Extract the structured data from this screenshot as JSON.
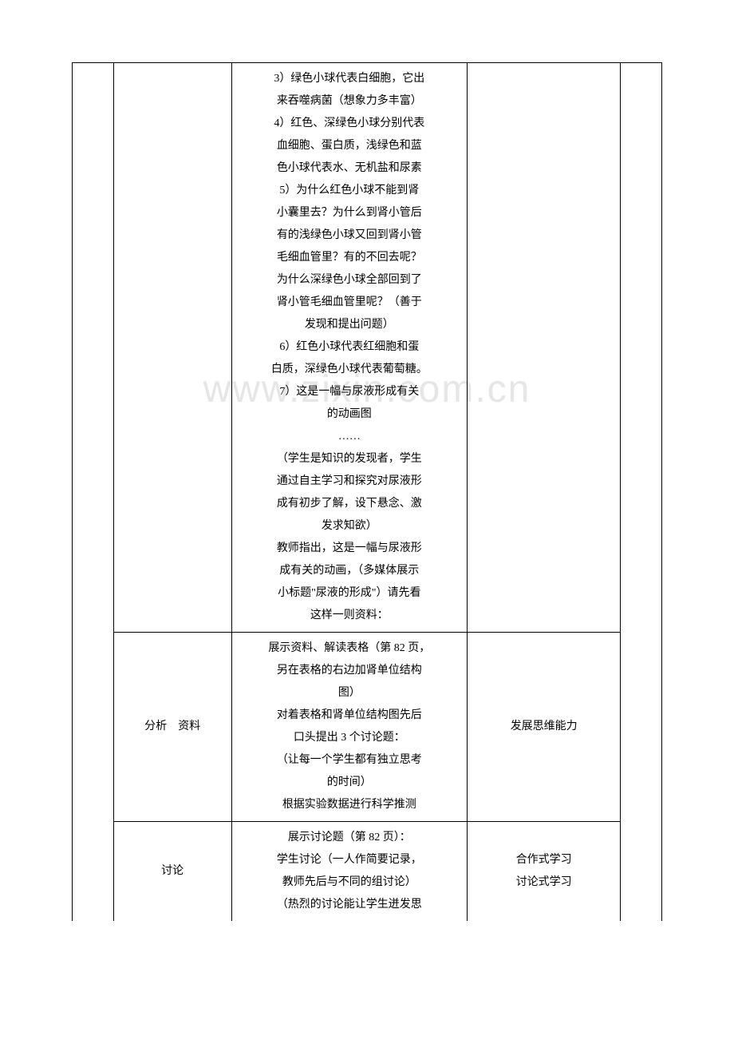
{
  "page": {
    "watermark": "www.zixin.com.cn",
    "rows": [
      {
        "sub": "",
        "main_lines": [
          "3）绿色小球代表白细胞，它出",
          "来吞噬病菌（想象力多丰富）",
          "4）红色、深绿色小球分别代表",
          "血细胞、蛋白质，浅绿色和蓝",
          "色小球代表水、无机盐和尿素",
          "5）为什么红色小球不能到肾",
          "小囊里去？为什么到肾小管后",
          "有的浅绿色小球又回到肾小管",
          "毛细血管里？有的不回去呢？",
          "为什么深绿色小球全部回到了",
          "肾小管毛细血管里呢？（善于",
          "发现和提出问题）",
          "6）红色小球代表红细胞和蛋",
          "白质，深绿色小球代表葡萄糖。",
          "7）这是一幅与尿液形成有关",
          "的动画图",
          "……",
          "（学生是知识的发现者，学生",
          "通过自主学习和探究对尿液形",
          "成有初步了解，设下悬念、激",
          "发求知欲）",
          "教师指出，这是一幅与尿液形",
          "成有关的动画，（多媒体展示",
          "小标题\"尿液的形成\"）请先看",
          "这样一则资料："
        ],
        "note": ""
      },
      {
        "sub": "分析　资料",
        "main_lines": [
          "展示资料、解读表格（第 82 页，",
          "另在表格的右边加肾单位结构",
          "图）",
          "对着表格和肾单位结构图先后",
          "口头提出 3 个讨论题：",
          "（让每一个学生都有独立思考",
          "的时间）",
          "根据实验数据进行科学推测"
        ],
        "note": "发展思维能力"
      },
      {
        "sub": "讨论",
        "main_lines": [
          "展示讨论题（第 82 页）：",
          "学生讨论（一人作简要记录，",
          "教师先后与不同的组讨论）",
          "（热烈的讨论能让学生迸发思"
        ],
        "note_lines": [
          "合作式学习",
          "讨论式学习"
        ]
      }
    ]
  }
}
